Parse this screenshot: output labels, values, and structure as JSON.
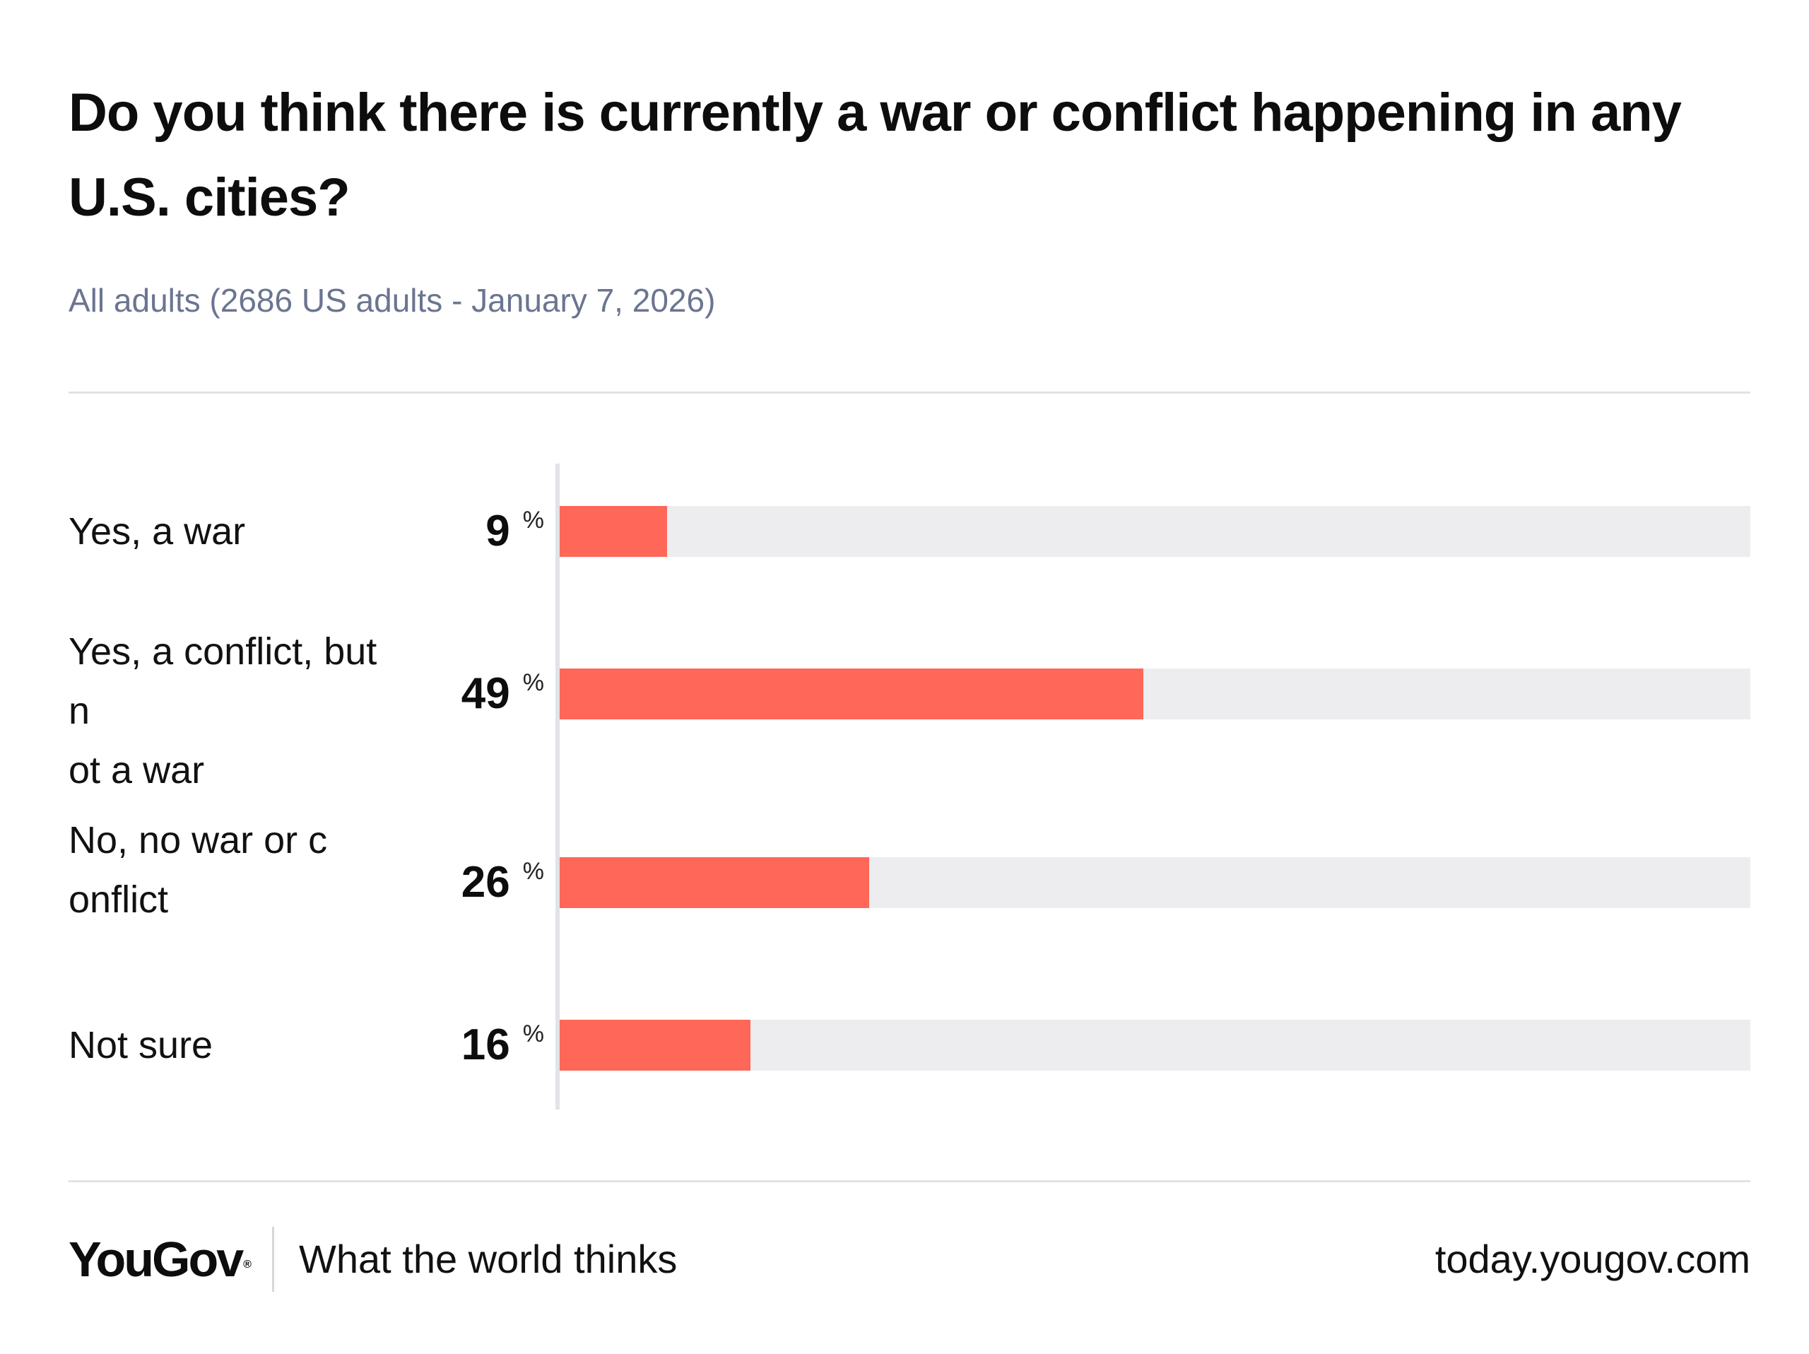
{
  "title": "Do you think there is currently a war or conflict happening in any U.S. cities?",
  "subtitle": "All adults (2686 US adults - January 7, 2026)",
  "colors": {
    "bar": "#ff6758",
    "track": "#ededf0",
    "subtitle": "#6b7590"
  },
  "chart_data": {
    "type": "bar",
    "orientation": "horizontal",
    "categories": [
      "Yes, a war",
      "Yes, a conflict, but not a war",
      "No, no war or conflict",
      "Not sure"
    ],
    "values": [
      9,
      49,
      26,
      16
    ],
    "value_suffix": "%",
    "xlim": [
      0,
      100
    ],
    "grid": false
  },
  "rows": [
    {
      "label": "Yes, a war",
      "value": "9",
      "unit": "%"
    },
    {
      "label": "Yes, a conflict, but not a war",
      "value": "49",
      "unit": "%"
    },
    {
      "label": "No, no war or conflict",
      "value": "26",
      "unit": "%"
    },
    {
      "label": "Not sure",
      "value": "16",
      "unit": "%"
    }
  ],
  "footer": {
    "brand": "YouGov",
    "brand_mark": "®",
    "tagline": "What the world thinks",
    "url": "today.yougov.com"
  }
}
